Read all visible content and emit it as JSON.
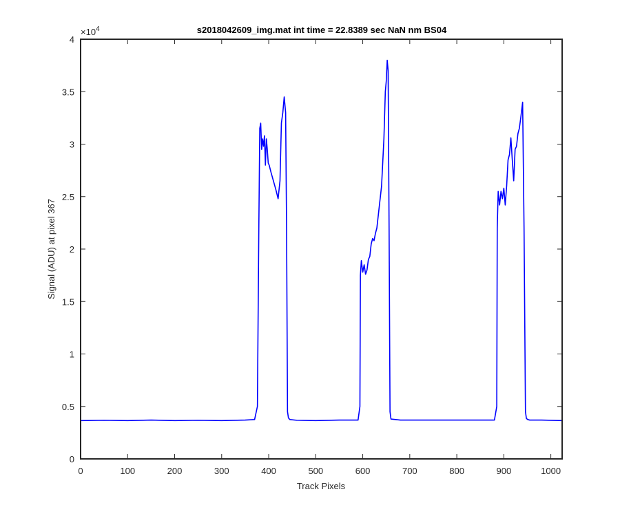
{
  "chart_data": {
    "type": "line",
    "title": "s2018042609_img.mat int time = 22.8389 sec  NaN nm BS04",
    "xlabel": "Track Pixels",
    "ylabel": "Signal (ADU) at pixel 367",
    "xlim": [
      0,
      1024
    ],
    "ylim": [
      0,
      40000
    ],
    "x_ticks": [
      0,
      100,
      200,
      300,
      400,
      500,
      600,
      700,
      800,
      900,
      1000
    ],
    "x_tick_labels": [
      "0",
      "100",
      "200",
      "300",
      "400",
      "500",
      "600",
      "700",
      "800",
      "900",
      "1000"
    ],
    "y_ticks": [
      0,
      5000,
      10000,
      15000,
      20000,
      25000,
      30000,
      35000,
      40000
    ],
    "y_tick_labels": [
      "0",
      "0.5",
      "1",
      "1.5",
      "2",
      "2.5",
      "3",
      "3.5",
      "4"
    ],
    "y_exponent_label": "×10",
    "y_exponent_power": "4",
    "grid": false,
    "line_color": "#0000ff",
    "series": [
      {
        "x": [
          0,
          50,
          100,
          150,
          200,
          250,
          300,
          350,
          370,
          376,
          379,
          381,
          383,
          385,
          387,
          389,
          391,
          393,
          395,
          397,
          399,
          401,
          405,
          410,
          415,
          420,
          424,
          427,
          430,
          433,
          436,
          438,
          440,
          442,
          445,
          460,
          500,
          550,
          590,
          594,
          595,
          597,
          600,
          603,
          606,
          609,
          612,
          615,
          618,
          621,
          624,
          627,
          630,
          635,
          640,
          645,
          648,
          650,
          652,
          654,
          656,
          658,
          660,
          680,
          750,
          800,
          880,
          885,
          886,
          888,
          891,
          894,
          897,
          900,
          903,
          906,
          909,
          912,
          915,
          918,
          921,
          924,
          927,
          930,
          933,
          936,
          940,
          943,
          946,
          948,
          951,
          955,
          980,
          1024
        ],
        "y": [
          3650,
          3680,
          3650,
          3700,
          3650,
          3680,
          3650,
          3700,
          3750,
          5000,
          22000,
          31500,
          32000,
          29500,
          30500,
          29800,
          30800,
          28000,
          30500,
          29500,
          28200,
          28000,
          27300,
          26500,
          25700,
          24800,
          26500,
          32000,
          33000,
          34500,
          33000,
          22000,
          4500,
          3900,
          3750,
          3680,
          3650,
          3700,
          3700,
          5000,
          17500,
          18900,
          17800,
          18500,
          17600,
          18000,
          19000,
          19300,
          20500,
          21000,
          20800,
          21500,
          22000,
          24000,
          26000,
          30500,
          35000,
          36000,
          38000,
          37000,
          22000,
          4500,
          3800,
          3700,
          3700,
          3700,
          3700,
          5000,
          22000,
          25500,
          24200,
          25500,
          24800,
          25800,
          24200,
          26000,
          28500,
          29000,
          30600,
          28500,
          26500,
          29500,
          29800,
          31000,
          31500,
          32500,
          34000,
          22000,
          4500,
          3850,
          3750,
          3700,
          3700,
          3650
        ]
      }
    ]
  }
}
